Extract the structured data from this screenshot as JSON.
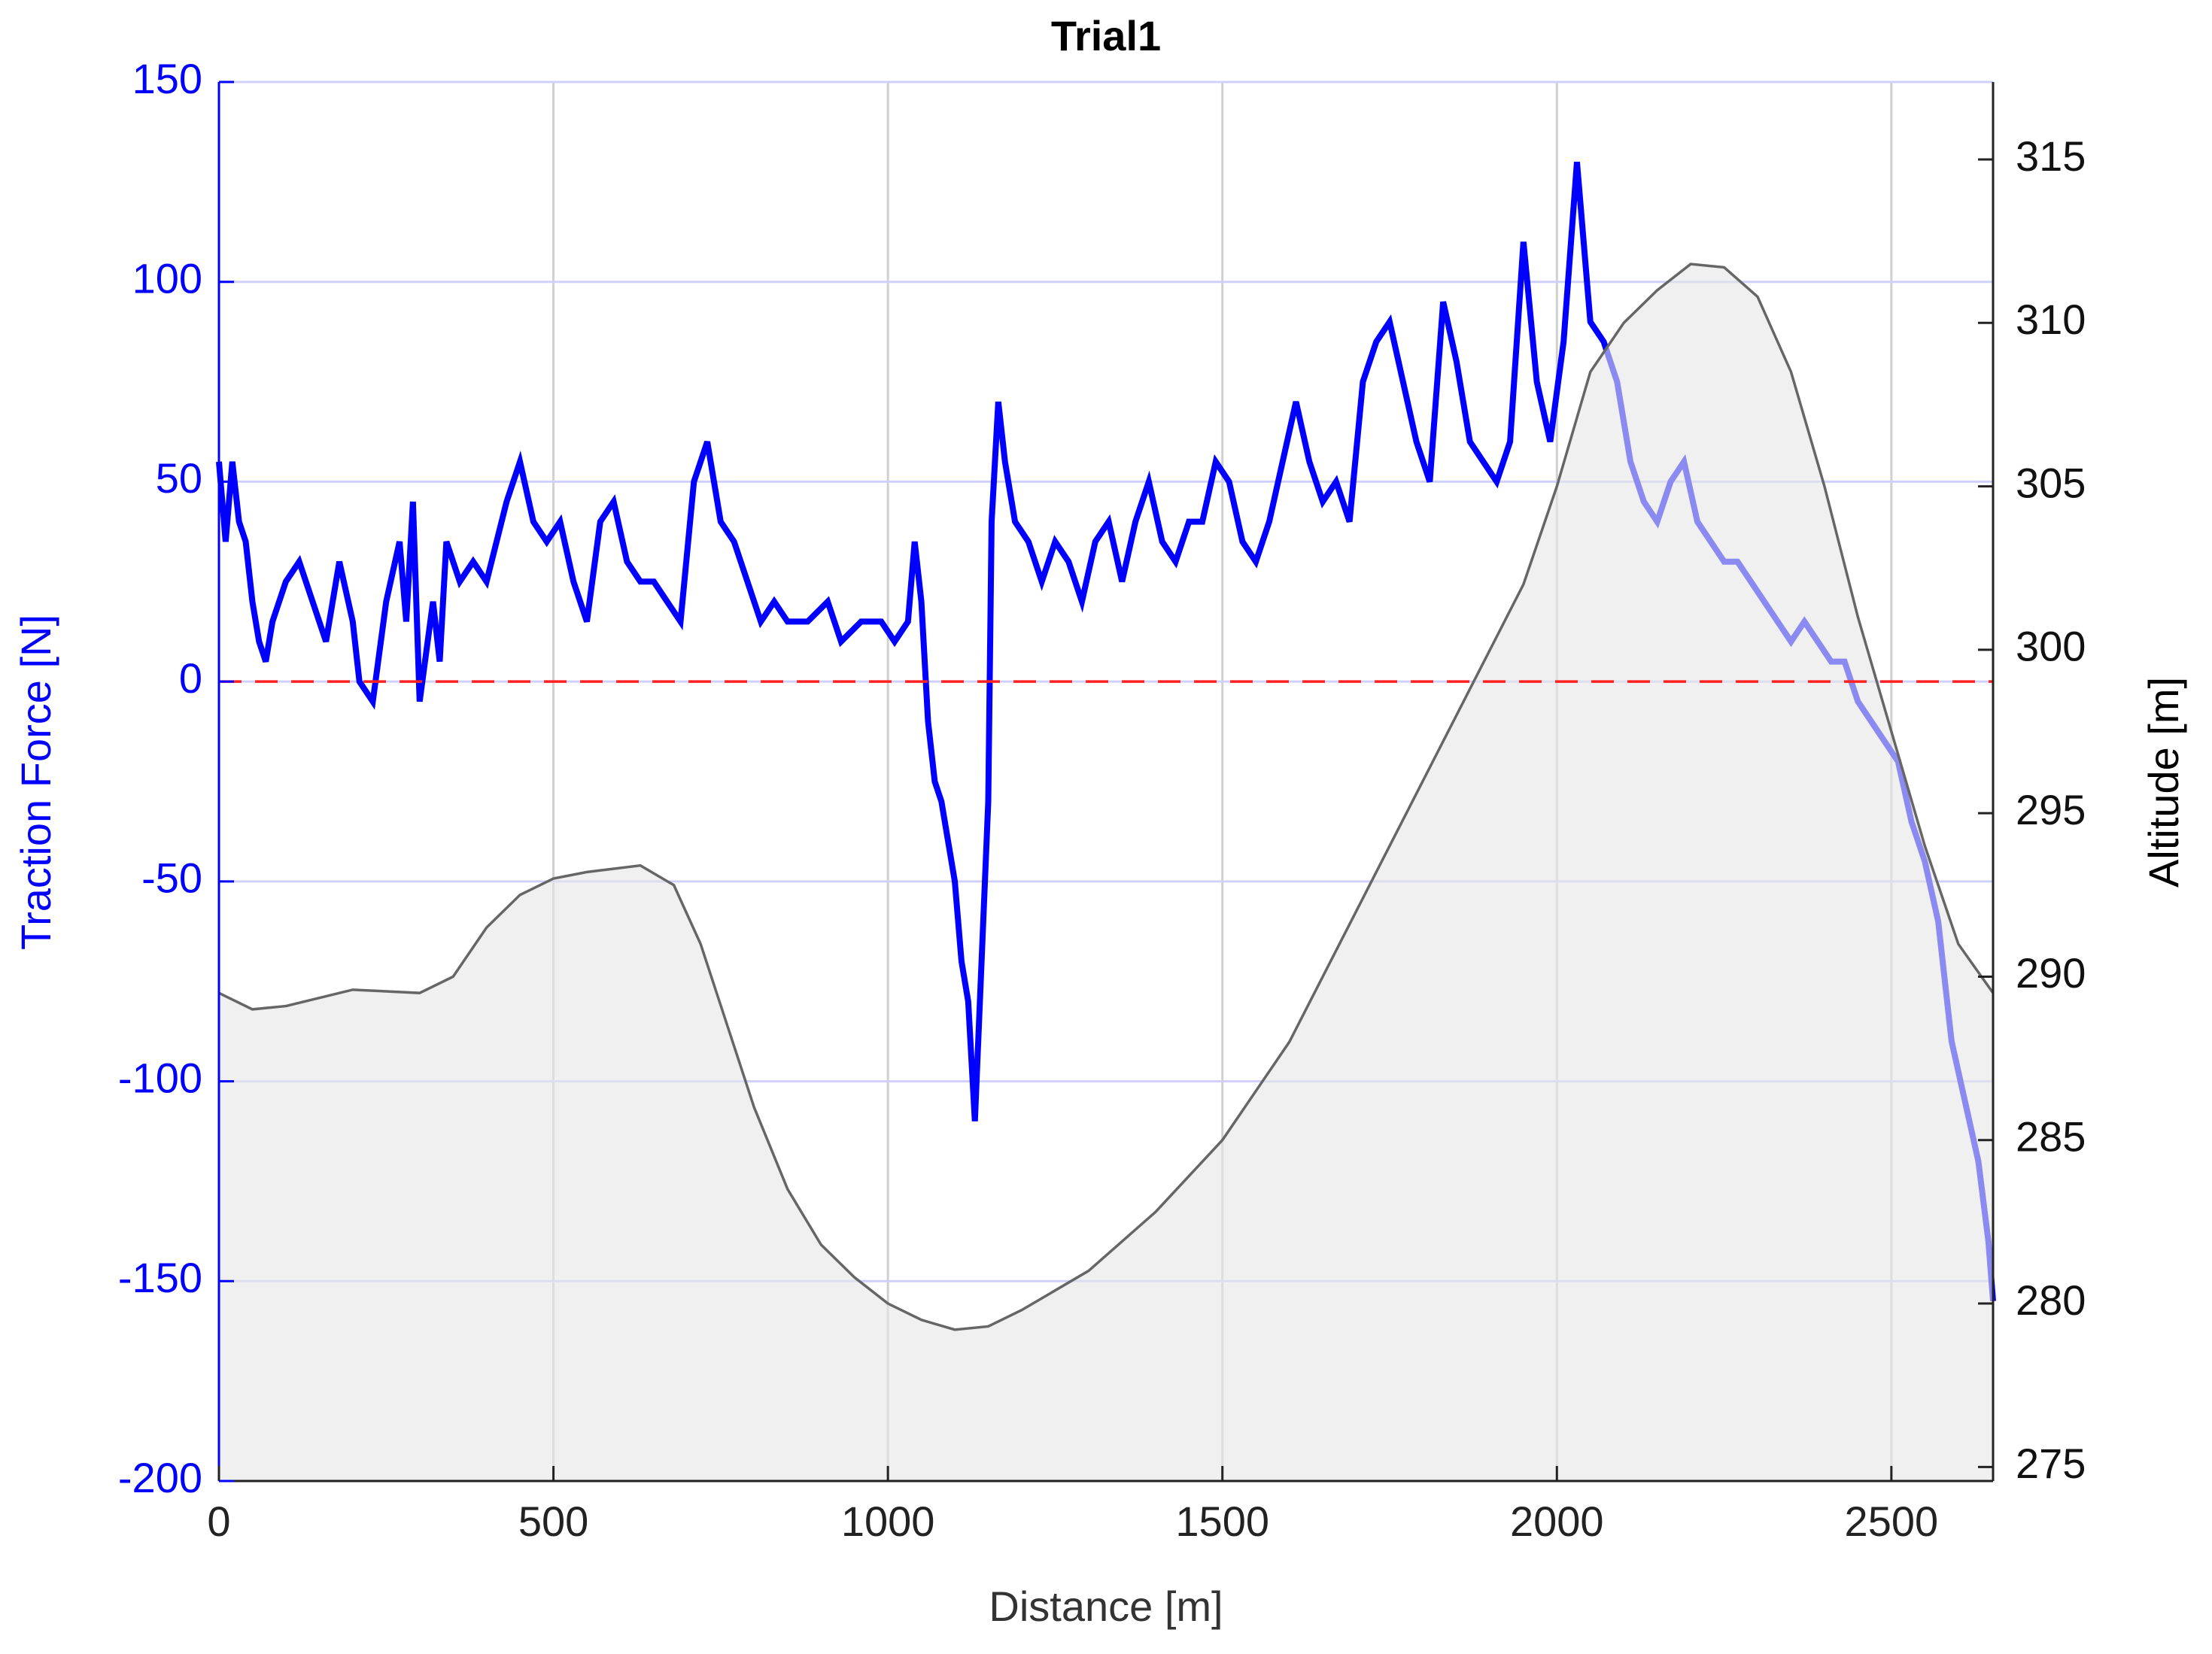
{
  "chart_data": {
    "type": "line",
    "title": "Trial1",
    "xlabel": "Distance [m]",
    "ylabel": "Traction Force [N]",
    "y2label": "Altitude [m]",
    "xlim": [
      0,
      2652
    ],
    "ylim": [
      -200,
      150
    ],
    "y2lim": [
      274.57,
      317.37
    ],
    "xticks": [
      0,
      500,
      1000,
      1500,
      2000,
      2500
    ],
    "yticks": [
      -200,
      -150,
      -100,
      -50,
      0,
      50,
      100,
      150
    ],
    "y2ticks": [
      275,
      280,
      285,
      290,
      295,
      300,
      305,
      310,
      315
    ],
    "grid": true,
    "reference_line": {
      "value": 0,
      "color": "#ff2020"
    },
    "series": [
      {
        "name": "Traction Force",
        "color": "#0000ff",
        "axis": "y",
        "x": [
          0,
          10,
          20,
          30,
          40,
          50,
          60,
          70,
          80,
          100,
          120,
          140,
          160,
          180,
          200,
          210,
          230,
          250,
          270,
          280,
          290,
          300,
          320,
          330,
          340,
          360,
          380,
          400,
          430,
          450,
          470,
          490,
          510,
          530,
          550,
          570,
          590,
          610,
          630,
          650,
          670,
          690,
          710,
          730,
          750,
          770,
          790,
          810,
          830,
          850,
          880,
          910,
          930,
          960,
          990,
          1010,
          1030,
          1040,
          1050,
          1060,
          1070,
          1080,
          1090,
          1100,
          1110,
          1120,
          1130,
          1140,
          1150,
          1155,
          1165,
          1175,
          1190,
          1210,
          1230,
          1250,
          1270,
          1290,
          1310,
          1330,
          1350,
          1370,
          1390,
          1410,
          1430,
          1450,
          1470,
          1490,
          1510,
          1530,
          1550,
          1570,
          1590,
          1610,
          1630,
          1650,
          1670,
          1690,
          1710,
          1730,
          1750,
          1770,
          1790,
          1810,
          1830,
          1850,
          1870,
          1890,
          1910,
          1930,
          1950,
          1970,
          1990,
          2010,
          2030,
          2050,
          2070,
          2090,
          2110,
          2130,
          2150,
          2170,
          2190,
          2210,
          2230,
          2250,
          2270,
          2290,
          2310,
          2330,
          2350,
          2370,
          2390,
          2410,
          2430,
          2450,
          2470,
          2490,
          2510,
          2530,
          2550,
          2570,
          2590,
          2610,
          2630,
          2645,
          2652
        ],
        "values": [
          55,
          35,
          55,
          40,
          35,
          20,
          10,
          5,
          15,
          25,
          30,
          20,
          10,
          30,
          15,
          0,
          -5,
          20,
          35,
          15,
          45,
          -5,
          20,
          5,
          35,
          25,
          30,
          25,
          45,
          55,
          40,
          35,
          40,
          25,
          15,
          40,
          45,
          30,
          25,
          25,
          20,
          15,
          50,
          60,
          40,
          35,
          25,
          15,
          20,
          15,
          15,
          20,
          10,
          15,
          15,
          10,
          15,
          35,
          20,
          -10,
          -25,
          -30,
          -40,
          -50,
          -70,
          -80,
          -110,
          -70,
          -30,
          40,
          70,
          55,
          40,
          35,
          25,
          35,
          30,
          20,
          35,
          40,
          25,
          40,
          50,
          35,
          30,
          40,
          40,
          55,
          50,
          35,
          30,
          40,
          55,
          70,
          55,
          45,
          50,
          40,
          75,
          85,
          90,
          75,
          60,
          50,
          95,
          80,
          60,
          55,
          50,
          60,
          110,
          75,
          60,
          85,
          130,
          90,
          85,
          75,
          55,
          45,
          40,
          50,
          55,
          40,
          35,
          30,
          30,
          25,
          20,
          15,
          10,
          15,
          10,
          5,
          5,
          -5,
          -10,
          -15,
          -20,
          -35,
          -45,
          -60,
          -90,
          -105,
          -120,
          -140,
          -155
        ]
      },
      {
        "name": "Altitude",
        "color": "#666666",
        "fill": "#e6e6e6",
        "axis": "y2",
        "x": [
          0,
          50,
          100,
          200,
          300,
          350,
          400,
          450,
          500,
          550,
          630,
          680,
          720,
          760,
          800,
          850,
          900,
          950,
          1000,
          1050,
          1100,
          1150,
          1200,
          1300,
          1400,
          1500,
          1600,
          1700,
          1800,
          1900,
          1950,
          2000,
          2050,
          2100,
          2150,
          2200,
          2250,
          2300,
          2350,
          2400,
          2450,
          2500,
          2550,
          2600,
          2652
        ],
        "values": [
          289.5,
          289.0,
          289.1,
          289.6,
          289.5,
          290,
          291.5,
          292.5,
          293,
          293.2,
          293.4,
          292.8,
          291,
          288.5,
          286,
          283.5,
          281.8,
          280.8,
          280,
          279.5,
          279.2,
          279.3,
          279.8,
          281,
          282.8,
          285,
          288,
          292,
          296,
          300,
          302,
          305,
          308.5,
          310,
          311,
          311.8,
          311.7,
          310.8,
          308.5,
          305,
          301,
          297.5,
          294,
          291,
          289.5
        ]
      }
    ]
  }
}
